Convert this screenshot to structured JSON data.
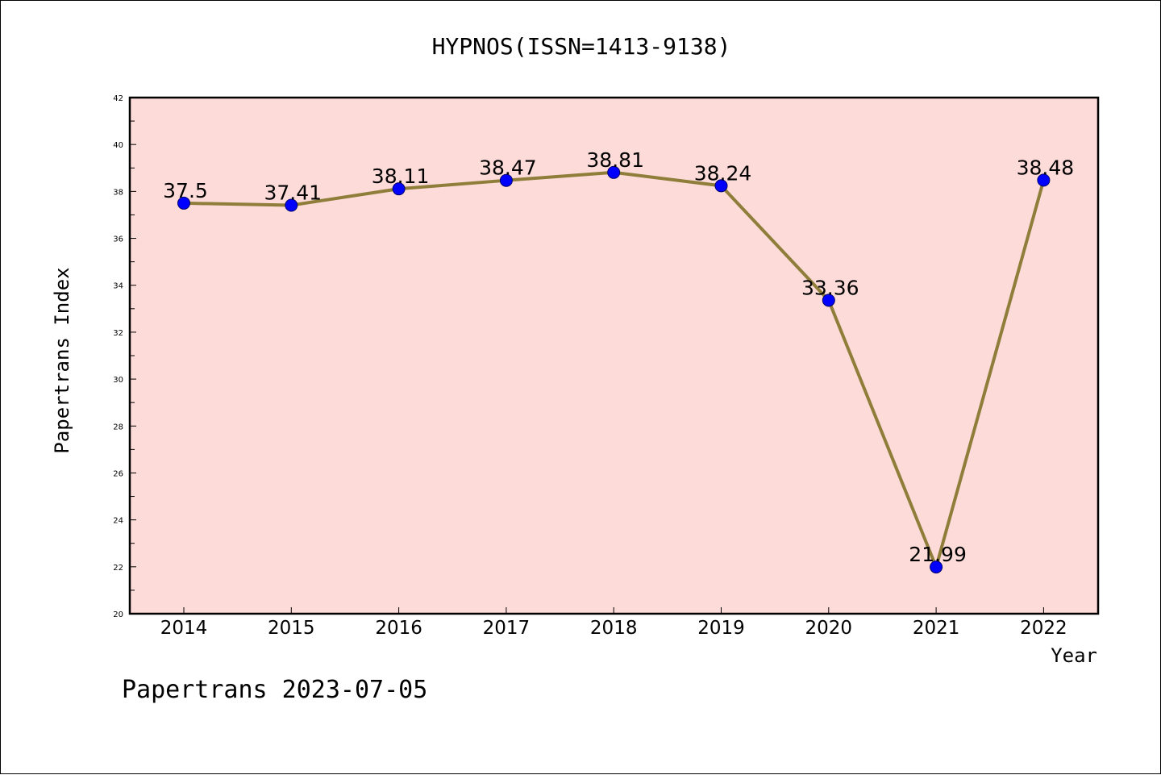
{
  "chart_data": {
    "type": "line",
    "title": "HYPNOS(ISSN=1413-9138)",
    "xlabel": "Year",
    "ylabel": "Papertrans Index",
    "categories": [
      "2014",
      "2015",
      "2016",
      "2017",
      "2018",
      "2019",
      "2020",
      "2021",
      "2022"
    ],
    "series": [
      {
        "name": "Papertrans Index",
        "values": [
          37.5,
          37.41,
          38.11,
          38.47,
          38.81,
          38.24,
          33.36,
          21.99,
          38.48
        ],
        "labels": [
          "37.5",
          "37.41",
          "38.11",
          "38.47",
          "38.81",
          "38.24",
          "33.36",
          "21.99",
          "38.48"
        ]
      }
    ],
    "ylim": [
      20,
      42
    ],
    "yticks": [
      "20",
      "22",
      "24",
      "26",
      "28",
      "30",
      "32",
      "34",
      "36",
      "38",
      "40",
      "42"
    ],
    "grid": false,
    "legend": "none"
  },
  "footer": "Papertrans 2023-07-05",
  "colors": {
    "plot_background": "#fddbd9",
    "line": "#8f7d3a",
    "marker": "#0000ff",
    "axis": "#000000"
  }
}
